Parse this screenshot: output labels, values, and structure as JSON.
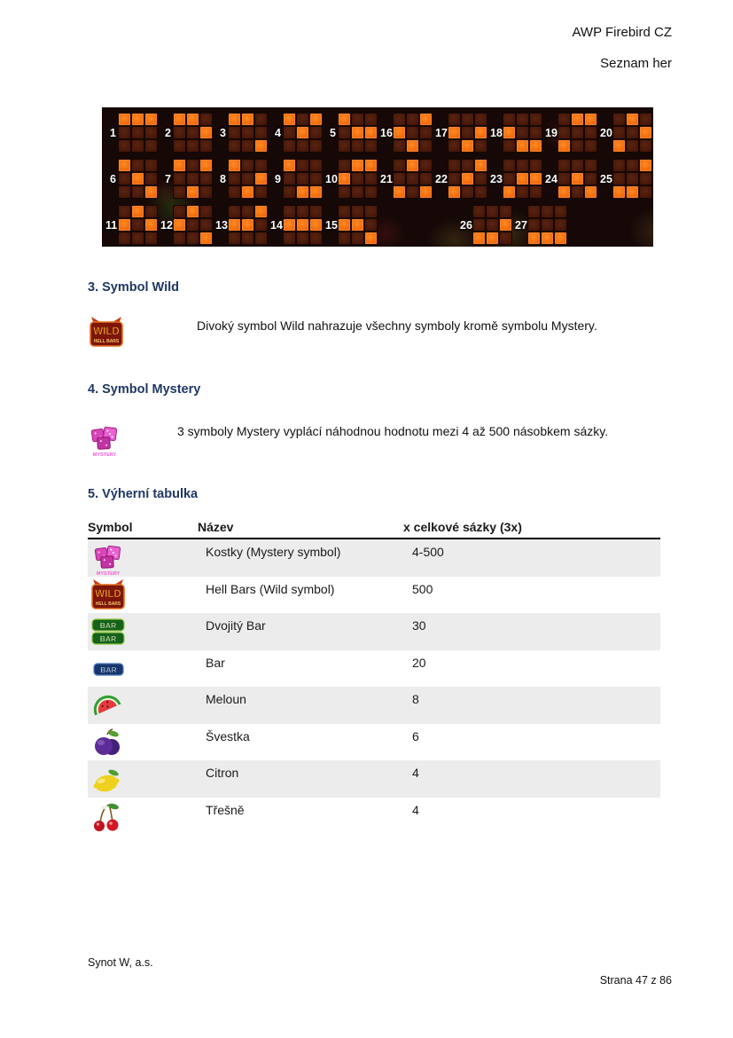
{
  "header": {
    "title": "AWP Firebird CZ",
    "subtitle": "Seznam her"
  },
  "winlines": {
    "colors": {
      "lit": "#f1670c",
      "unlit": "#4a190c",
      "background": "#150807",
      "number": "#ffffff"
    },
    "layout": [
      [
        1,
        2,
        3,
        4,
        5,
        16,
        17,
        18,
        19,
        20
      ],
      [
        6,
        7,
        8,
        9,
        10,
        21,
        22,
        23,
        24,
        25
      ],
      [
        11,
        12,
        13,
        14,
        15,
        "gap",
        26,
        27
      ]
    ],
    "patterns": {
      "1": [
        0,
        0,
        0
      ],
      "2": [
        0,
        0,
        1
      ],
      "3": [
        0,
        0,
        2
      ],
      "4": [
        0,
        1,
        0
      ],
      "5": [
        0,
        1,
        1
      ],
      "6": [
        0,
        1,
        2
      ],
      "7": [
        0,
        2,
        0
      ],
      "8": [
        0,
        2,
        1
      ],
      "9": [
        0,
        2,
        2
      ],
      "10": [
        1,
        0,
        0
      ],
      "11": [
        1,
        0,
        1
      ],
      "12": [
        1,
        0,
        2
      ],
      "13": [
        1,
        1,
        0
      ],
      "14": [
        1,
        1,
        1
      ],
      "15": [
        1,
        1,
        2
      ],
      "16": [
        1,
        2,
        0
      ],
      "17": [
        1,
        2,
        1
      ],
      "18": [
        1,
        2,
        2
      ],
      "19": [
        2,
        0,
        0
      ],
      "20": [
        2,
        0,
        1
      ],
      "21": [
        2,
        0,
        2
      ],
      "22": [
        2,
        1,
        0
      ],
      "23": [
        2,
        1,
        1
      ],
      "24": [
        2,
        1,
        2
      ],
      "25": [
        2,
        2,
        0
      ],
      "26": [
        2,
        2,
        1
      ],
      "27": [
        2,
        2,
        2
      ]
    }
  },
  "sections": [
    {
      "title": "3. Symbol Wild",
      "icon": "wild",
      "text": "Divoký symbol Wild nahrazuje všechny symboly kromě symbolu Mystery."
    },
    {
      "title": "4. Symbol Mystery",
      "icon": "mystery",
      "text": "3 symboly Mystery vyplácí náhodnou hodnotu mezi 4 až 500 násobkem sázky."
    }
  ],
  "paytable": {
    "title": "5. Výherní tabulka",
    "columns": [
      "Symbol",
      "Název",
      "x celkové sázky (3x)"
    ],
    "rows": [
      {
        "icon": "mystery",
        "name": "Kostky (Mystery symbol)",
        "value": "4-500"
      },
      {
        "icon": "wild",
        "name": "Hell Bars (Wild symbol)",
        "value": "500"
      },
      {
        "icon": "doublebar",
        "name": "Dvojitý Bar",
        "value": "30"
      },
      {
        "icon": "bar",
        "name": "Bar",
        "value": "20"
      },
      {
        "icon": "melon",
        "name": "Meloun",
        "value": "8"
      },
      {
        "icon": "plum",
        "name": "Švestka",
        "value": "6"
      },
      {
        "icon": "lemon",
        "name": "Citron",
        "value": "4"
      },
      {
        "icon": "cherry",
        "name": "Třešně",
        "value": "4"
      }
    ]
  },
  "icon_labels": {
    "wild_title": "WILD",
    "wild_sub": "HELL BARS",
    "bar": "BAR",
    "mystery": "MYSTERY"
  },
  "footer": {
    "company": "Synot W, a.s.",
    "page": "Strana 47 z 86"
  },
  "colors": {
    "heading": "#1f3864",
    "table_shade": "#ececec"
  }
}
